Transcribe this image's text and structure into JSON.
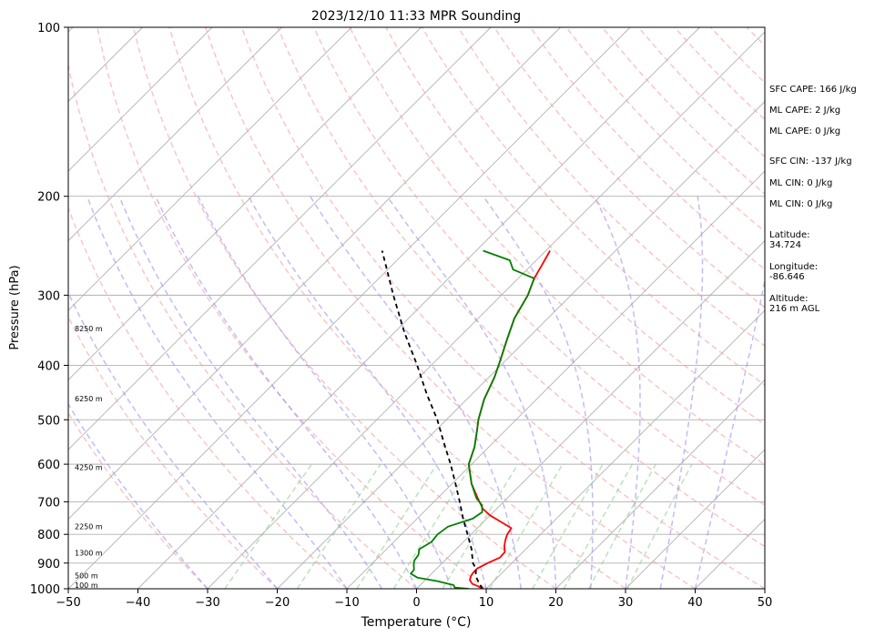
{
  "chart_data": {
    "type": "line",
    "title": "2023/12/10 11:33 MPR Sounding",
    "xlabel": "Temperature (°C)",
    "ylabel": "Pressure (hPa)",
    "xlim": [
      -50,
      50
    ],
    "ylim": [
      1000,
      100
    ],
    "y_scale": "log",
    "grid": true,
    "x_ticks": [
      -50,
      -40,
      -30,
      -20,
      -10,
      0,
      10,
      20,
      30,
      40,
      50
    ],
    "y_ticks": [
      1000,
      900,
      800,
      700,
      600,
      500,
      400,
      300,
      200,
      100
    ],
    "height_labels": [
      {
        "label": "100 m",
        "pressure": 988
      },
      {
        "label": "500 m",
        "pressure": 950
      },
      {
        "label": "1300 m",
        "pressure": 866
      },
      {
        "label": "2250 m",
        "pressure": 777
      },
      {
        "label": "4250 m",
        "pressure": 610
      },
      {
        "label": "6250 m",
        "pressure": 460
      },
      {
        "label": "8250 m",
        "pressure": 345
      }
    ],
    "series": [
      {
        "color": "#ff0000",
        "points": [
          {
            "p": 1000,
            "t": 9.5
          },
          {
            "p": 990,
            "t": 8.5
          },
          {
            "p": 980,
            "t": 7.3
          },
          {
            "p": 965,
            "t": 6.4
          },
          {
            "p": 950,
            "t": 6.0
          },
          {
            "p": 935,
            "t": 5.8
          },
          {
            "p": 920,
            "t": 5.8
          },
          {
            "p": 900,
            "t": 6.5
          },
          {
            "p": 880,
            "t": 7.5
          },
          {
            "p": 860,
            "t": 7.4
          },
          {
            "p": 840,
            "t": 6.5
          },
          {
            "p": 820,
            "t": 5.8
          },
          {
            "p": 800,
            "t": 5.2
          },
          {
            "p": 780,
            "t": 4.9
          },
          {
            "p": 760,
            "t": 2.5
          },
          {
            "p": 740,
            "t": 0.0
          },
          {
            "p": 720,
            "t": -2.0
          },
          {
            "p": 690,
            "t": -4.2
          },
          {
            "p": 650,
            "t": -7.2
          },
          {
            "p": 600,
            "t": -10.4
          },
          {
            "p": 560,
            "t": -12.0
          },
          {
            "p": 520,
            "t": -14.2
          },
          {
            "p": 500,
            "t": -15.4
          },
          {
            "p": 460,
            "t": -17.5
          },
          {
            "p": 420,
            "t": -19.2
          },
          {
            "p": 390,
            "t": -20.9
          },
          {
            "p": 360,
            "t": -22.8
          },
          {
            "p": 330,
            "t": -24.8
          },
          {
            "p": 300,
            "t": -26.2
          },
          {
            "p": 280,
            "t": -27.7
          },
          {
            "p": 265,
            "t": -28.5
          },
          {
            "p": 250,
            "t": -29.4
          }
        ]
      },
      {
        "color": "#008000",
        "points": [
          {
            "p": 1000,
            "t": 7.5
          },
          {
            "p": 995,
            "t": 5.3
          },
          {
            "p": 985,
            "t": 4.8
          },
          {
            "p": 970,
            "t": 2.0
          },
          {
            "p": 955,
            "t": -1.5
          },
          {
            "p": 940,
            "t": -3.0
          },
          {
            "p": 925,
            "t": -3.1
          },
          {
            "p": 905,
            "t": -3.9
          },
          {
            "p": 890,
            "t": -4.4
          },
          {
            "p": 870,
            "t": -4.6
          },
          {
            "p": 850,
            "t": -5.3
          },
          {
            "p": 825,
            "t": -4.6
          },
          {
            "p": 800,
            "t": -4.8
          },
          {
            "p": 775,
            "t": -4.4
          },
          {
            "p": 750,
            "t": -2.0
          },
          {
            "p": 730,
            "t": -1.6
          },
          {
            "p": 710,
            "t": -2.6
          },
          {
            "p": 690,
            "t": -4.4
          },
          {
            "p": 650,
            "t": -7.2
          },
          {
            "p": 600,
            "t": -10.4
          },
          {
            "p": 560,
            "t": -12.0
          },
          {
            "p": 520,
            "t": -14.2
          },
          {
            "p": 500,
            "t": -15.4
          },
          {
            "p": 460,
            "t": -17.5
          },
          {
            "p": 420,
            "t": -19.2
          },
          {
            "p": 390,
            "t": -20.9
          },
          {
            "p": 360,
            "t": -22.8
          },
          {
            "p": 330,
            "t": -24.8
          },
          {
            "p": 300,
            "t": -26.2
          },
          {
            "p": 280,
            "t": -27.7
          },
          {
            "p": 270,
            "t": -32.0
          },
          {
            "p": 260,
            "t": -33.8
          },
          {
            "p": 250,
            "t": -39.0
          }
        ]
      },
      {
        "color": "#000000",
        "style": "dashed",
        "points": [
          {
            "p": 1000,
            "t": 9.5
          },
          {
            "p": 990,
            "t": 8.9
          },
          {
            "p": 970,
            "t": 7.8
          },
          {
            "p": 950,
            "t": 6.7
          },
          {
            "p": 920,
            "t": 5.6
          },
          {
            "p": 900,
            "t": 4.4
          },
          {
            "p": 850,
            "t": 2.2
          },
          {
            "p": 800,
            "t": -0.5
          },
          {
            "p": 750,
            "t": -3.4
          },
          {
            "p": 700,
            "t": -6.3
          },
          {
            "p": 650,
            "t": -9.5
          },
          {
            "p": 600,
            "t": -13.0
          },
          {
            "p": 550,
            "t": -17.0
          },
          {
            "p": 500,
            "t": -21.3
          },
          {
            "p": 450,
            "t": -26.5
          },
          {
            "p": 400,
            "t": -32.0
          },
          {
            "p": 350,
            "t": -38.5
          },
          {
            "p": 300,
            "t": -45.5
          },
          {
            "p": 250,
            "t": -53.5
          }
        ]
      }
    ],
    "annotations": {
      "sfc_cape": "SFC CAPE: 166 J/kg",
      "ml_cape_1": "ML CAPE: 2 J/kg",
      "ml_cape_2": "ML CAPE: 0 J/kg",
      "sfc_cin": "SFC CIN: -137 J/kg",
      "ml_cin_1": "ML CIN: 0 J/kg",
      "ml_cin_2": "ML CIN: 0 J/kg",
      "latitude": "Latitude:\n34.724",
      "longitude": "Longitude:\n-86.646",
      "altitude": "Altitude:\n216 m AGL"
    }
  }
}
